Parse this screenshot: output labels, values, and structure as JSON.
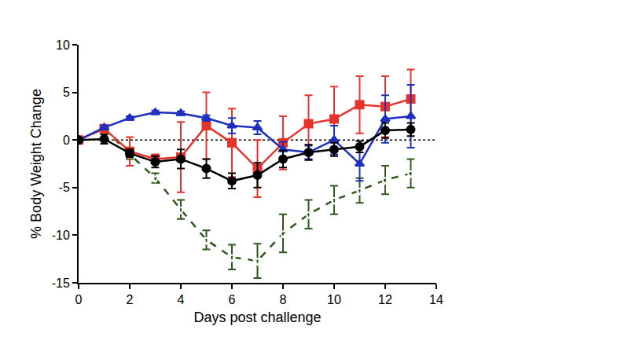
{
  "chart_data": {
    "type": "line",
    "x_label": "Days post challenge",
    "y_label": "% Body Weight Change",
    "x": [
      0,
      1,
      2,
      3,
      4,
      5,
      6,
      7,
      8,
      9,
      10,
      11,
      12,
      13
    ],
    "xlim": [
      0,
      14
    ],
    "xticks": [
      0,
      2,
      4,
      6,
      8,
      10,
      12,
      14
    ],
    "ylim": [
      -15,
      10
    ],
    "yticks": [
      -15,
      -10,
      -5,
      0,
      5,
      10
    ],
    "grid": false,
    "reference_line": {
      "y": 0,
      "line_style": "dotted"
    },
    "series": [
      {
        "color": "#2d5a1b",
        "marker": "triangle-down-open",
        "line_style": "dash",
        "values": [
          0,
          1.2,
          -1.5,
          -4,
          -7.3,
          -10.5,
          -12.3,
          -12.7,
          -9.8,
          -7.8,
          -6.3,
          -5.3,
          -4.2,
          -3.5
        ],
        "error": [
          0,
          0.3,
          0.5,
          0.5,
          1,
          1,
          1.3,
          1.8,
          2,
          1.5,
          1.5,
          1.3,
          1.5,
          1.5
        ]
      },
      {
        "color": "#e8332a",
        "marker": "square",
        "line_style": "solid",
        "values": [
          0,
          1.2,
          -1.2,
          -2,
          -1.8,
          1.5,
          -0.3,
          -3,
          -0.3,
          1.7,
          2.2,
          3.7,
          3.5,
          4.3
        ],
        "error": [
          0,
          0.3,
          1.5,
          0.5,
          3.7,
          3.5,
          3.6,
          3,
          2.8,
          3,
          3.4,
          3,
          3.2,
          3.1
        ]
      },
      {
        "color": "#1f2fbf",
        "marker": "triangle-up",
        "line_style": "solid",
        "values": [
          0,
          1.3,
          2.3,
          2.9,
          2.8,
          2.3,
          1.5,
          1.3,
          -1,
          -1.3,
          0,
          -2.5,
          2.2,
          2.5
        ],
        "error": [
          0,
          0.2,
          0.2,
          0.2,
          0.2,
          0.3,
          0.8,
          0.7,
          0.8,
          0.7,
          1.5,
          1.8,
          2.5,
          3.3
        ]
      },
      {
        "color": "#000000",
        "marker": "circle",
        "line_style": "solid",
        "values": [
          0,
          0.1,
          -1.4,
          -2.3,
          -2,
          -3,
          -4.3,
          -3.7,
          -2,
          -1.3,
          -1,
          -0.7,
          1,
          1.1
        ],
        "error": [
          0,
          0.5,
          0.4,
          0.6,
          1,
          1,
          0.8,
          1.3,
          0.9,
          0.8,
          0.7,
          0.6,
          0.8,
          0.7
        ]
      }
    ]
  }
}
